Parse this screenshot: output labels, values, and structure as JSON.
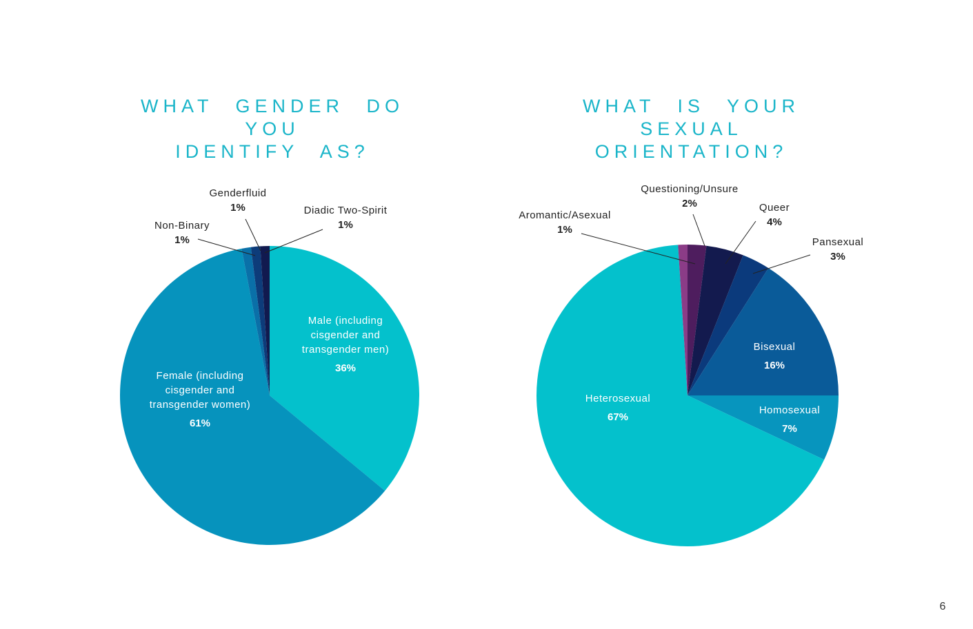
{
  "page_number": "6",
  "colors": {
    "title": "#1ab5c9",
    "label_dark": "#1f1f1f",
    "label_light": "#ffffff",
    "leader_line": "#222222"
  },
  "chart_data": [
    {
      "type": "pie",
      "title_lines": [
        "WHAT GENDER DO YOU",
        "IDENTIFY AS?"
      ],
      "start_angle_deg": 0,
      "direction": "clockwise",
      "slices": [
        {
          "key": "male",
          "label_lines": [
            "Male (including",
            "cisgender and",
            "transgender men)"
          ],
          "pct_label": "36%",
          "value": 36,
          "color": "#04c1cc",
          "label_color": "#ffffff"
        },
        {
          "key": "female",
          "label_lines": [
            "Female (including",
            "cisgender and",
            "transgender women)"
          ],
          "pct_label": "61%",
          "value": 61,
          "color": "#0693bd",
          "label_color": "#ffffff"
        },
        {
          "key": "non-binary",
          "label_lines": [
            "Non-Binary"
          ],
          "pct_label": "1%",
          "value": 1,
          "color": "#0a70a8",
          "label_color": "#1f1f1f"
        },
        {
          "key": "genderfluid",
          "label_lines": [
            "Genderfluid"
          ],
          "pct_label": "1%",
          "value": 1,
          "color": "#0d3c7a",
          "label_color": "#1f1f1f"
        },
        {
          "key": "diadic-two-spirit",
          "label_lines": [
            "Diadic Two-Spirit"
          ],
          "pct_label": "1%",
          "value": 1,
          "color": "#111a4f",
          "label_color": "#1f1f1f"
        }
      ]
    },
    {
      "type": "pie",
      "title_lines": [
        "WHAT IS YOUR SEXUAL",
        "ORIENTATION?"
      ],
      "start_angle_deg": 0,
      "direction": "clockwise",
      "slices": [
        {
          "key": "questioning",
          "label_lines": [
            "Questioning/Unsure"
          ],
          "pct_label": "2%",
          "value": 2,
          "color": "#4e1d5e",
          "label_color": "#1f1f1f"
        },
        {
          "key": "queer",
          "label_lines": [
            "Queer"
          ],
          "pct_label": "4%",
          "value": 4,
          "color": "#131a4e",
          "label_color": "#1f1f1f"
        },
        {
          "key": "pansexual",
          "label_lines": [
            "Pansexual"
          ],
          "pct_label": "3%",
          "value": 3,
          "color": "#0b3a7c",
          "label_color": "#1f1f1f"
        },
        {
          "key": "bisexual",
          "label_lines": [
            "Bisexual"
          ],
          "pct_label": "16%",
          "value": 16,
          "color": "#0a5b99",
          "label_color": "#ffffff"
        },
        {
          "key": "homosexual",
          "label_lines": [
            "Homosexual"
          ],
          "pct_label": "7%",
          "value": 7,
          "color": "#0795be",
          "label_color": "#ffffff"
        },
        {
          "key": "heterosexual",
          "label_lines": [
            "Heterosexual"
          ],
          "pct_label": "67%",
          "value": 67,
          "color": "#04c1cc",
          "label_color": "#ffffff"
        },
        {
          "key": "aromantic-asexual",
          "label_lines": [
            "Aromantic/Asexual"
          ],
          "pct_label": "1%",
          "value": 1,
          "color": "#8b3c87",
          "label_color": "#1f1f1f"
        }
      ]
    }
  ]
}
